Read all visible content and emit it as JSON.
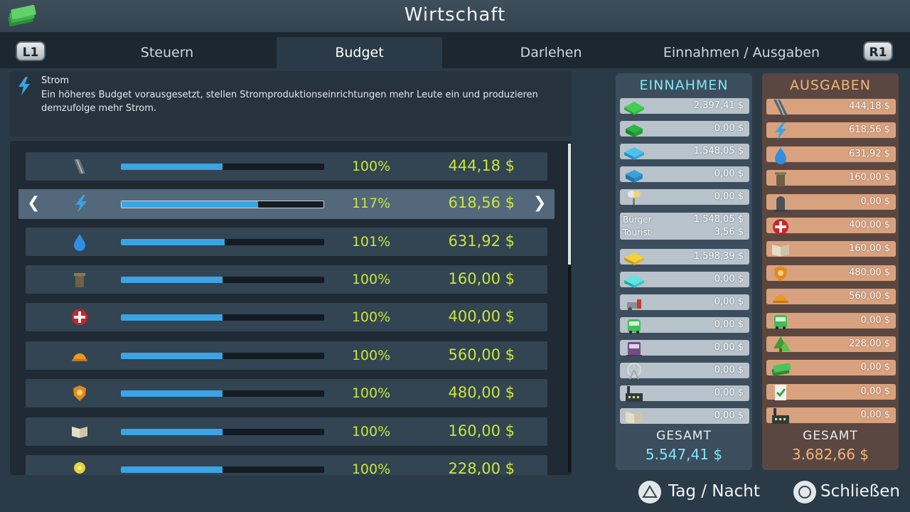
{
  "title": "Wirtschaft",
  "shoulder_left": "L1",
  "shoulder_right": "R1",
  "tabs": [
    {
      "label": "Steuern"
    },
    {
      "label": "Budget"
    },
    {
      "label": "Darlehen"
    },
    {
      "label": "Einnahmen / Ausgaben"
    }
  ],
  "info": {
    "name": "Strom",
    "description": "Ein höheres Budget vorausgesetzt, stellen Stromproduktionseinrichtungen mehr Leute ein und produzieren demzufolge mehr Strom."
  },
  "budget_rows": [
    {
      "icon": "road-icon",
      "percent": "100%",
      "amount": "444,18 $",
      "level": 0.5
    },
    {
      "icon": "electricity-bolt-icon",
      "percent": "117%",
      "amount": "618,56 $",
      "level": 0.676
    },
    {
      "icon": "water-drop-icon",
      "percent": "101%",
      "amount": "631,92 $",
      "level": 0.51
    },
    {
      "icon": "garbage-bin-icon",
      "percent": "100%",
      "amount": "160,00 $",
      "level": 0.5
    },
    {
      "icon": "healthcare-icon",
      "percent": "100%",
      "amount": "400,00 $",
      "level": 0.5
    },
    {
      "icon": "fire-helmet-icon",
      "percent": "100%",
      "amount": "560,00 $",
      "level": 0.5
    },
    {
      "icon": "police-badge-icon",
      "percent": "100%",
      "amount": "480,00 $",
      "level": 0.5
    },
    {
      "icon": "education-book-icon",
      "percent": "100%",
      "amount": "160,00 $",
      "level": 0.5
    },
    {
      "icon": "park-flower-icon",
      "percent": "100%",
      "amount": "228,00 $",
      "level": 0.5
    }
  ],
  "income": {
    "heading": "EINNAHMEN",
    "items": [
      {
        "icon": "residential-low-icon",
        "value": "2.397,41 $"
      },
      {
        "icon": "residential-high-icon",
        "value": "0,00 $"
      },
      {
        "icon": "commercial-low-icon",
        "value": "1.548,05 $"
      },
      {
        "icon": "commercial-high-icon",
        "value": "0,00 $"
      },
      {
        "icon": "leisure-tourism-icon",
        "value": "0,00 $"
      }
    ],
    "citizen_tourist": {
      "label1": "Bürger",
      "value1": "1.548,05 $",
      "label2": "Tourist",
      "value2": "3,56 $"
    },
    "items2": [
      {
        "icon": "industrial-icon",
        "value": "1.598,39 $"
      },
      {
        "icon": "office-icon",
        "value": "0,00 $"
      },
      {
        "icon": "farming-icon",
        "value": "0,00 $"
      },
      {
        "icon": "bus-icon",
        "value": "0,00 $"
      },
      {
        "icon": "metro-icon",
        "value": "0,00 $"
      },
      {
        "icon": "ferris-wheel-icon",
        "value": "0,00 $"
      },
      {
        "icon": "factory-icon",
        "value": "0,00 $"
      },
      {
        "icon": "book-icon",
        "value": "0,00 $"
      }
    ],
    "total_label": "GESAMT",
    "total_value": "5.547,41 $"
  },
  "expenses": {
    "heading": "AUSGABEN",
    "items": [
      {
        "icon": "road-icon",
        "value": "444,18 $"
      },
      {
        "icon": "electricity-bolt-icon",
        "value": "618,56 $"
      },
      {
        "icon": "water-drop-icon",
        "value": "631,92 $"
      },
      {
        "icon": "garbage-bin-icon",
        "value": "160,00 $"
      },
      {
        "icon": "tombstone-icon",
        "value": "0,00 $"
      },
      {
        "icon": "healthcare-icon",
        "value": "400,00 $"
      },
      {
        "icon": "education-book-icon",
        "value": "160,00 $"
      },
      {
        "icon": "police-badge-icon",
        "value": "480,00 $"
      },
      {
        "icon": "fire-helmet-icon",
        "value": "560,00 $"
      },
      {
        "icon": "bus-icon",
        "value": "0,00 $"
      },
      {
        "icon": "park-tree-icon",
        "value": "228,00 $"
      },
      {
        "icon": "money-icon",
        "value": "0,00 $"
      },
      {
        "icon": "policy-check-icon",
        "value": "0,00 $"
      },
      {
        "icon": "factory-icon",
        "value": "0,00 $"
      }
    ],
    "total_label": "GESAMT",
    "total_value": "3.682,66 $"
  },
  "footer": {
    "daynight_label": "Tag / Nacht",
    "close_label": "Schließen"
  }
}
